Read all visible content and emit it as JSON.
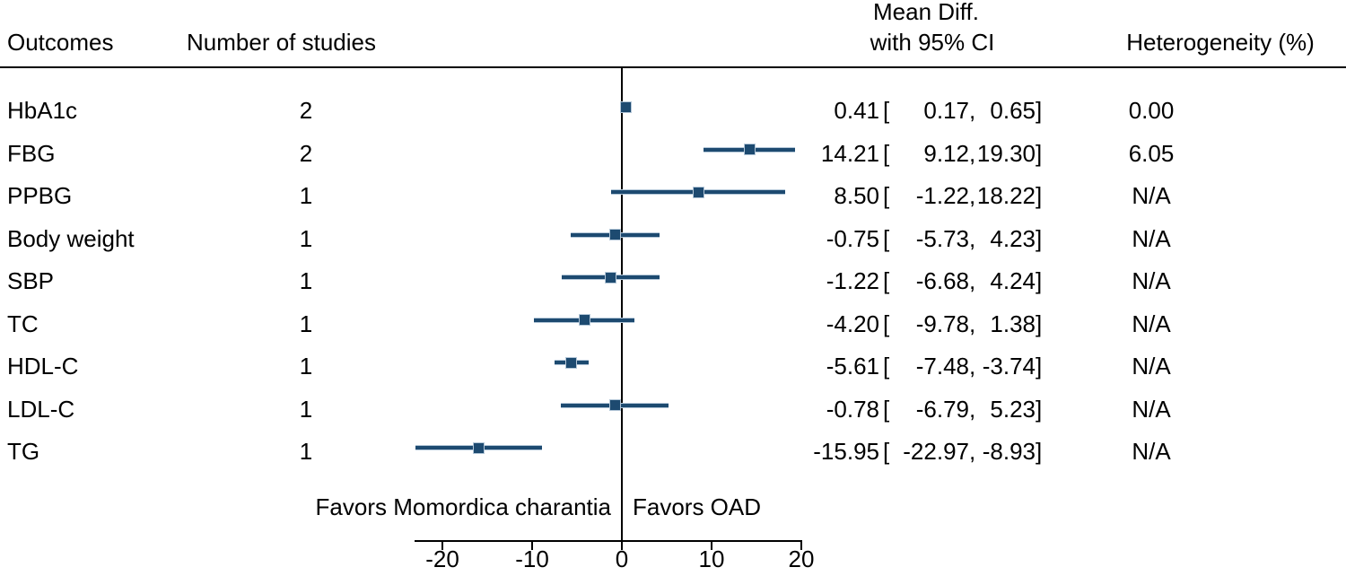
{
  "header": {
    "outcomes": "Outcomes",
    "n_studies": "Number of studies",
    "effect_line1": "Mean Diff.",
    "effect_line2": "with 95% CI",
    "heterogeneity": "Heterogeneity (%)"
  },
  "format": {
    "open_bracket": "[",
    "comma": ",",
    "close_bracket": "]"
  },
  "colors": {
    "marker": "#1d4a70",
    "halo": "#b4c7d8",
    "axis": "#000000",
    "text": "#000000"
  },
  "chart_data": {
    "type": "forest",
    "effect_label": "Mean Diff. with 95% CI",
    "x_axis": {
      "range": [
        -23.1,
        20
      ],
      "zero_reference": 0,
      "ticks": [
        {
          "value": -20,
          "label": "-20"
        },
        {
          "value": -10,
          "label": "-10"
        },
        {
          "value": 0,
          "label": "0"
        },
        {
          "value": 10,
          "label": "10"
        },
        {
          "value": 20,
          "label": "20"
        }
      ]
    },
    "rows": [
      {
        "label": "HbA1c",
        "n_studies": "2",
        "mean_diff": 0.41,
        "ci_lower": 0.17,
        "ci_upper": 0.65,
        "heterogeneity": "0.00"
      },
      {
        "label": "FBG",
        "n_studies": "2",
        "mean_diff": 14.21,
        "ci_lower": 9.12,
        "ci_upper": 19.3,
        "heterogeneity": "6.05"
      },
      {
        "label": "PPBG",
        "n_studies": "1",
        "mean_diff": 8.5,
        "ci_lower": -1.22,
        "ci_upper": 18.22,
        "heterogeneity": "N/A"
      },
      {
        "label": "Body weight",
        "n_studies": "1",
        "mean_diff": -0.75,
        "ci_lower": -5.73,
        "ci_upper": 4.23,
        "heterogeneity": "N/A"
      },
      {
        "label": "SBP",
        "n_studies": "1",
        "mean_diff": -1.22,
        "ci_lower": -6.68,
        "ci_upper": 4.24,
        "heterogeneity": "N/A"
      },
      {
        "label": "TC",
        "n_studies": "1",
        "mean_diff": -4.2,
        "ci_lower": -9.78,
        "ci_upper": 1.38,
        "heterogeneity": "N/A"
      },
      {
        "label": "HDL-C",
        "n_studies": "1",
        "mean_diff": -5.61,
        "ci_lower": -7.48,
        "ci_upper": -3.74,
        "heterogeneity": "N/A"
      },
      {
        "label": "LDL-C",
        "n_studies": "1",
        "mean_diff": -0.78,
        "ci_lower": -6.79,
        "ci_upper": 5.23,
        "heterogeneity": "N/A"
      },
      {
        "label": "TG",
        "n_studies": "1",
        "mean_diff": -15.95,
        "ci_lower": -22.97,
        "ci_upper": -8.93,
        "heterogeneity": "N/A"
      }
    ],
    "favors_left": "Favors Momordica charantia",
    "favors_right": "Favors OAD"
  }
}
